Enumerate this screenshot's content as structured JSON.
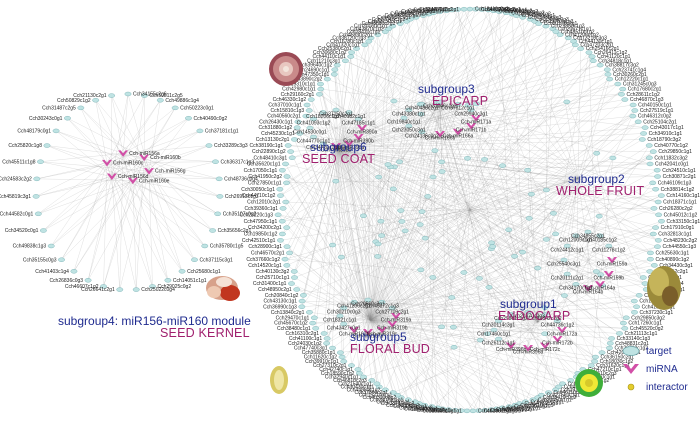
{
  "subgroups": [
    {
      "id": "sg1",
      "name": "subgroup1",
      "tissue": "ENDOCARP",
      "labels": [
        "Cch-miR172a",
        "Cch-miR172b",
        "Cch-miR172c",
        "Cch-miR396a",
        "Cch-miR396b",
        "Cch26112c1g1",
        "Cch17460c1g1",
        "Cch30114c3g1",
        "Cch29861c1g2",
        "Cch21870c2g3",
        "Cch11342c2g2",
        "Cch44736c1g2"
      ]
    },
    {
      "id": "sg2",
      "name": "subgroup2",
      "tissue": "WHOLE FRUIT",
      "labels": [
        "Cch-miR159a",
        "Cch-miR159b",
        "Cch-miR164a",
        "Cch-miR164b",
        "Cch34170c1g1",
        "Cch20111c2g1",
        "Cch25540c3g1",
        "Cch24412c1g1",
        "Cch12009c1g1",
        "Cch34855c2g1",
        "Cch40185c1g2",
        "Cch11278c1g2"
      ]
    },
    {
      "id": "sg3",
      "name": "subgroup3",
      "tissue": "EPICARP",
      "labels": [
        "Cch-miR171a",
        "Cch-miR171b",
        "Cch-miR166a",
        "Cch-miR166b",
        "Cch24136c0g2",
        "Cch23050c3g1",
        "Cch19840c1g1",
        "Cch43380c1g1",
        "Cch40488c2g1",
        "Cch31046c1g2",
        "Cch37812c1g1",
        "Cch29940c3g1"
      ]
    },
    {
      "id": "sg4",
      "name": "subgroup4: miR156-miR160 module",
      "tissue": "SEED KERNEL",
      "labels": [
        "Cch34155c2g6",
        "Cch50811c2g5",
        "Cch49886c1g4",
        "Cch50223c0g1",
        "Cch40490c0g2",
        "Cch37181c1g1",
        "Cch33289c3g3",
        "Cch36317c1g3",
        "Cch-miR156g",
        "Cch48736c0g4",
        "Cch26913c1g3",
        "Cch-miR160e",
        "Cch35107c0g2",
        "Cch35656c2g1",
        "Cch-miR156d",
        "Cch35780c1g5",
        "Cch37115c3g1",
        "Cch-miR160c",
        "Cch25680c1g1",
        "Cch-miR156a",
        "Cch14051c1g1",
        "Cch-miR160b",
        "Cch29025c0g2",
        "Cch25022c0g4",
        "Cch26641c2g1",
        "Cch46607c1g2",
        "Cch26836c0g3",
        "Cch41403c1g4",
        "Cch35155c0g3",
        "Cch49838c1g3",
        "Cch34520c0g1",
        "Cch44582c0g1",
        "Cch45819c3g1",
        "Cch24583c2g2",
        "Cch45511c1g8",
        "Cch25820c1g8",
        "Cch48179c0g1",
        "Cch30243c0g1",
        "Cch31487c2g5",
        "Cch50829c1g2",
        "Cch21130c2g1"
      ]
    },
    {
      "id": "sg5",
      "name": "subgroup5",
      "tissue": "FLORAL BUD",
      "labels": [
        "Cch-miR319a",
        "Cch-miR319b",
        "Cch-miR319c",
        "Cch-miR167a",
        "Cch-miR167b",
        "Cch43427c0g1",
        "Cch18321c1g1",
        "Cch30210c0g3",
        "Cch41206c2g1",
        "Cch20560c3g1",
        "Cch45172c1g3",
        "Cch27709c2g1"
      ]
    },
    {
      "id": "sg6",
      "name": "subgroup6",
      "tissue": "SEED COAT",
      "labels": [
        "Cch-miR390a",
        "Cch-miR390b",
        "Cch-miR398a",
        "Cch-miR398b",
        "Cch34720c1g1",
        "Cch44770c1g1",
        "Cch14530c0g1",
        "Cch41093c1g2",
        "Cch18206c1g2",
        "Cch37150c2g1",
        "Cch40182c1g1",
        "Cch47185c1g1"
      ]
    }
  ],
  "outer_ring": {
    "labels": [
      "Cch13416c0g2",
      "Cch44720c1g1",
      "Cch32165c2g1",
      "Cch22840c1g4",
      "Cch36906c1g2",
      "Cch40918c0g2",
      "Cch11427c1g2",
      "Cch48301c1g2",
      "Cch49801c1g1",
      "Cch18436c2g3",
      "Cch23690c0g3",
      "Cch29782c1g3",
      "Cch30178c2g1",
      "Cch25850c1g2",
      "Cch20671c1g1",
      "Cch48510c1g2",
      "Cch41206c1g2",
      "Cch13210c3g3",
      "Cch44130c1g1",
      "Cch47203c2g1",
      "Cch25416c2g1",
      "Cch26411c1g2",
      "Cch41120c1g1",
      "Cch34818c1g1",
      "Cch38817c3g2",
      "Cch23741c1g4",
      "Cch30260c2g1",
      "Cch12220c1g1",
      "Cch31245c0g3",
      "Cch17680c2g1",
      "Cch28611c1g2",
      "Cch46870c1g3",
      "Cch40150c1g1",
      "Cch27519c1g1",
      "Cch46312c0g2",
      "Cch25104c2g1",
      "Cch43017c1g1",
      "Cch34910c1g1",
      "Cch18790c3g2",
      "Cch40770c1g2",
      "Cch29850c1g1",
      "Cch11832c3g2",
      "Cch42041c0g1",
      "Cch24510c1g1",
      "Cch30871c2g1",
      "Cch46109c1g3",
      "Cch38814c1g2",
      "Cch14160c1g1",
      "Cch18371c1g1",
      "Cch26280c2g2",
      "Cch45012c1g2",
      "Cch33150c1g1",
      "Cch17910c0g1",
      "Cch32813c1g1",
      "Cch48230c2g2",
      "Cch44550c1g3",
      "Cch25630c1g1",
      "Cch40890c1g2",
      "Cch34430c3g1",
      "Cch20112c2g1",
      "Cch47813c1g1",
      "Cch30240c1g4",
      "Cch28190c1g1",
      "Cch40615c2g2",
      "Cch13990c1g1",
      "Cch41590c2g1",
      "Cch37230c1g1",
      "Cch29850c3g2",
      "Cch17260c1g1",
      "Cch45520c0g2",
      "Cch21113c1g1",
      "Cch33140c1g3",
      "Cch48831c2g1",
      "Cch26718c1g2",
      "Cch42080c1g1",
      "Cch36150c2g1",
      "Cch18030c1g2",
      "Cch31620c1g1",
      "Cch47210c1g1",
      "Cch23510c2g3",
      "Cch40750c1g1",
      "Cch12450c1g2",
      "Cch38800c3g1",
      "Cch44318c1g1",
      "Cch29116c2g1",
      "Cch46110c1g2",
      "Cch27560c1g1",
      "Cch35410c0g2",
      "Cch20450c1g1",
      "Cch42300c2g1",
      "Cch14781c1g3",
      "Cch39110c1g1",
      "Cch31770c1g2",
      "Cch48120c2g1",
      "Cch25118c1g1",
      "Cch43560c1g2",
      "Cch17420c3g1",
      "Cch30810c1g1",
      "Cch46190c2g2",
      "Cch22510c1g1",
      "Cch38340c1g1",
      "Cch12880c2g1",
      "Cch44070c1g3",
      "Cch35020c1g1",
      "Cch28150c0g2",
      "Cch41810c1g1",
      "Cch19060c2g1",
      "Cch33710c1g2",
      "Cch47530c1g1",
      "Cch26070c1g1",
      "Cch40310c3g2",
      "Cch15210c1g1",
      "Cch37860c2g1",
      "Cch44950c1g2",
      "Cch30430c1g1",
      "Cch21540c1g1",
      "Cch46810c2g3",
      "Cch32940c1g1",
      "Cch18590c1g2",
      "Cch42740c1g1",
      "Cch27310c2g1",
      "Cch39910c1g1",
      "Cch11620c1g2",
      "Cch35880c1g1",
      "Cch47740c3g1",
      "Cch24030c1g2",
      "Cch41100c1g1",
      "Cch16310c2g1",
      "Cch38480c1g1",
      "Cch45670c1g2",
      "Cch29470c1g1",
      "Cch13840c2g1",
      "Cch36990c1g3",
      "Cch43130c1g1",
      "Cch20840c1g2",
      "Cch48950c2g1",
      "Cch31400c1g1",
      "Cch25710c1g1",
      "Cch40130c3g2",
      "Cch14520c1g1",
      "Cch37660c1g2",
      "Cch46570c2g1",
      "Cch28900c1g1",
      "Cch42510c1g1",
      "Cch19850c1g2",
      "Cch34200c2g1",
      "Cch47950c1g1",
      "Cch23220c1g3",
      "Cch39360c1g1",
      "Cch12010c2g1",
      "Cch44710c1g2",
      "Cch30050c1g1",
      "Cch27850c1g1",
      "Cch41950c2g2",
      "Cch17050c1g1",
      "Cch35620c1g1",
      "Cch48410c3g1",
      "Cch22890c1g2",
      "Cch38190c1g1",
      "Cch13130c2g1",
      "Cch45230c1g1",
      "Cch31880c1g2",
      "Cch26430c1g1",
      "Cch40560c2g1",
      "Cch15810c1g3",
      "Cch37010c1g1",
      "Cch46330c1g2",
      "Cch29160c2g1",
      "Cch42980c1g1",
      "Cch19310c1g1",
      "Cch33890c2g2",
      "Cch47350c1g1",
      "Cch24690c1g1",
      "Cch39640c1g2",
      "Cch11210c3g1",
      "Cch44110c1g1",
      "Cch30680c1g2",
      "Cch25380c2g1",
      "Cch41320c1g1",
      "Cch16780c1g1",
      "Cch38720c1g3",
      "Cch45930c2g1",
      "Cch28420c1g1",
      "Cch43870c1g2",
      "Cch20160c1g1",
      "Cch48680c2g1",
      "Cch32150c1g1",
      "Cch27040c1g2",
      "Cch40980c1g1",
      "Cch14200c2g1",
      "Cch36340c1g1",
      "Cch46910c1g2",
      "Cch29730c3g1",
      "Cch42230c1g1",
      "Cch18140c1g1",
      "Cch34650c2g2",
      "Cch47680c1g1"
    ]
  },
  "legend": {
    "items": [
      {
        "label": "target",
        "shape": "ellipse"
      },
      {
        "label": "miRNA",
        "shape": "v"
      },
      {
        "label": "interactor",
        "shape": "dot"
      }
    ]
  },
  "colors": {
    "target_fill": "#bfe3e3",
    "target_stroke": "#6fa9ad",
    "mirna": "#d24fa7",
    "interactor": "#e3cc2d",
    "edge": "#8a8a8a",
    "subgroup_text": "#1f2b8f",
    "tissue_text": "#a0206e"
  },
  "images": [
    {
      "name": "epicarp-image",
      "depicts": "epicarp cross section"
    },
    {
      "name": "seed-kernel-image",
      "depicts": "seed kernel"
    },
    {
      "name": "whole-fruit-image",
      "depicts": "whole fruit"
    },
    {
      "name": "floral-bud-image",
      "depicts": "floral bud"
    },
    {
      "name": "endocarp-image",
      "depicts": "endocarp"
    }
  ]
}
